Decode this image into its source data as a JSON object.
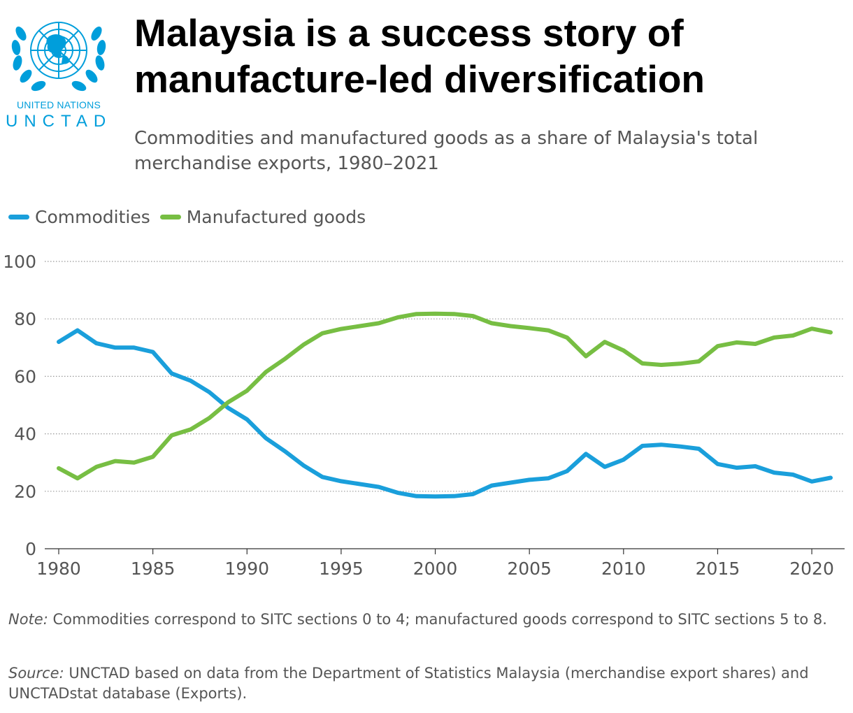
{
  "logo": {
    "org": "UNITED NATIONS",
    "name": "UNCTAD",
    "color": "#009EDB"
  },
  "header": {
    "title": "Malaysia is a success story of manufacture-led diversification",
    "subtitle": "Commodities and manufactured goods as a share of Malaysia's total merchandise exports, 1980–2021"
  },
  "colors": {
    "commodities": "#1A9FDB",
    "manufactured": "#77BE43",
    "grid": "#999999",
    "tick_text": "#555555"
  },
  "chart_data": {
    "type": "line",
    "title": "Malaysia is a success story of manufacture-led diversification",
    "subtitle": "Commodities and manufactured goods as a share of Malaysia's total merchandise exports, 1980–2021",
    "xlabel": "",
    "ylabel": "",
    "xlim": [
      1980,
      2021
    ],
    "ylim": [
      0,
      100
    ],
    "yticks": [
      0,
      20,
      40,
      60,
      80,
      100
    ],
    "xticks": [
      1980,
      1985,
      1990,
      1995,
      2000,
      2005,
      2010,
      2015,
      2020
    ],
    "grid": "horizontal dotted",
    "legend": "top-left",
    "x": [
      1980,
      1981,
      1982,
      1983,
      1984,
      1985,
      1986,
      1987,
      1988,
      1989,
      1990,
      1991,
      1992,
      1993,
      1994,
      1995,
      1996,
      1997,
      1998,
      1999,
      2000,
      2001,
      2002,
      2003,
      2004,
      2005,
      2006,
      2007,
      2008,
      2009,
      2010,
      2011,
      2012,
      2013,
      2014,
      2015,
      2016,
      2017,
      2018,
      2019,
      2020,
      2021
    ],
    "series": [
      {
        "name": "Commodities",
        "color": "#1A9FDB",
        "values": [
          72,
          76,
          71.5,
          70,
          70,
          68.5,
          61,
          58.5,
          54.5,
          49,
          45,
          38.5,
          34,
          29,
          25,
          23.5,
          22.5,
          21.5,
          19.5,
          18.3,
          18.2,
          18.3,
          19,
          22,
          23,
          24,
          24.5,
          27,
          33,
          28.5,
          31,
          35.8,
          36.2,
          35.6,
          34.8,
          29.5,
          28.2,
          28.7,
          26.5,
          25.8,
          23.4,
          24.7
        ]
      },
      {
        "name": "Manufactured goods",
        "color": "#77BE43",
        "values": [
          28,
          24.5,
          28.5,
          30.5,
          30,
          32,
          39.5,
          41.5,
          45.5,
          51,
          55,
          61.5,
          66,
          71,
          75,
          76.5,
          77.5,
          78.5,
          80.5,
          81.7,
          81.8,
          81.7,
          81,
          78.5,
          77.5,
          76.8,
          76,
          73.5,
          67,
          72,
          69,
          64.5,
          64,
          64.4,
          65.2,
          70.5,
          71.8,
          71.3,
          73.5,
          74.2,
          76.6,
          75.3
        ]
      }
    ]
  },
  "notes": {
    "note_label": "Note:",
    "note_text": " Commodities correspond to SITC sections 0 to 4; manufactured goods correspond to SITC sections 5 to 8.",
    "source_label": "Source:",
    "source_text": " UNCTAD based on data from the Department of Statistics Malaysia (merchandise export shares) and UNCTADstat database (Exports)."
  }
}
